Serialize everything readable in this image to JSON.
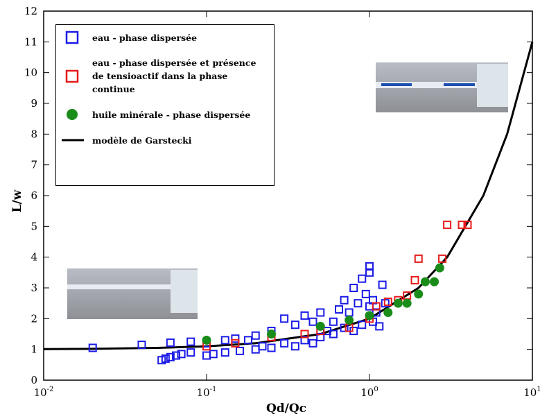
{
  "chart_data": {
    "type": "scatter",
    "x_label": "Qd/Qc",
    "y_label": "L/w",
    "xscale": "log",
    "xlim": [
      0.01,
      10
    ],
    "ylim": [
      0,
      12
    ],
    "xticks": [
      {
        "value": 0.01,
        "label": "10",
        "exponent": "-2"
      },
      {
        "value": 0.1,
        "label": "10",
        "exponent": "-1"
      },
      {
        "value": 1,
        "label": "10",
        "exponent": "0"
      },
      {
        "value": 10,
        "label": "10",
        "exponent": "1"
      }
    ],
    "yticks": [
      0,
      1,
      2,
      3,
      4,
      5,
      6,
      7,
      8,
      9,
      10,
      11,
      12
    ],
    "series": [
      {
        "name": "eau - phase dispersée",
        "color": "#1a1ae6",
        "marker": "square-open",
        "x": [
          0.02,
          0.04,
          0.053,
          0.056,
          0.06,
          0.06,
          0.065,
          0.07,
          0.08,
          0.08,
          0.1,
          0.1,
          0.11,
          0.13,
          0.13,
          0.15,
          0.16,
          0.18,
          0.2,
          0.2,
          0.22,
          0.25,
          0.25,
          0.3,
          0.3,
          0.35,
          0.35,
          0.4,
          0.4,
          0.45,
          0.45,
          0.5,
          0.5,
          0.55,
          0.6,
          0.6,
          0.65,
          0.7,
          0.7,
          0.75,
          0.8,
          0.8,
          0.85,
          0.9,
          0.9,
          0.95,
          1.0,
          1.0,
          1.0,
          1.05,
          1.05,
          1.1,
          1.15,
          1.2,
          1.25
        ],
        "y": [
          1.05,
          1.15,
          0.65,
          0.7,
          1.22,
          0.75,
          0.8,
          0.85,
          1.25,
          0.9,
          0.8,
          1.2,
          0.85,
          1.3,
          0.9,
          1.35,
          0.95,
          1.3,
          1.0,
          1.45,
          1.1,
          1.05,
          1.6,
          1.2,
          2.0,
          1.1,
          1.8,
          2.1,
          1.3,
          1.2,
          1.9,
          2.2,
          1.4,
          1.6,
          1.5,
          1.9,
          2.3,
          1.7,
          2.6,
          2.2,
          3.0,
          1.6,
          2.5,
          3.3,
          1.8,
          2.8,
          3.7,
          3.5,
          2.4,
          1.9,
          2.6,
          2.2,
          1.75,
          3.1,
          2.5
        ]
      },
      {
        "name": "eau - phase dispersée et présence de tensioactif dans la phase continue",
        "color": "#e61a1a",
        "marker": "square-open",
        "x": [
          0.1,
          0.15,
          0.25,
          0.4,
          0.5,
          0.75,
          1.0,
          1.1,
          1.3,
          1.5,
          1.7,
          1.9,
          2.0,
          2.8,
          3.0,
          3.7,
          4.0
        ],
        "y": [
          1.1,
          1.2,
          1.4,
          1.5,
          1.6,
          1.7,
          2.0,
          2.4,
          2.55,
          2.6,
          2.75,
          3.25,
          3.95,
          3.95,
          5.05,
          5.05,
          5.05
        ]
      },
      {
        "name": "huile minérale - phase dispersée",
        "color": "#1a8c1a",
        "marker": "circle",
        "x": [
          0.1,
          0.25,
          0.5,
          0.75,
          1.0,
          1.3,
          1.5,
          1.7,
          2.0,
          2.2,
          2.5,
          2.7
        ],
        "y": [
          1.3,
          1.5,
          1.75,
          1.95,
          2.1,
          2.2,
          2.5,
          2.5,
          2.8,
          3.2,
          3.2,
          3.65
        ]
      },
      {
        "name": "modèle de Garstecki",
        "color": "#000000",
        "marker": "line",
        "x": [
          0.01,
          0.02,
          0.05,
          0.1,
          0.2,
          0.5,
          1,
          2,
          3,
          5,
          7,
          10
        ],
        "y": [
          1.01,
          1.02,
          1.05,
          1.1,
          1.2,
          1.5,
          2,
          3,
          4,
          6,
          8,
          11
        ]
      }
    ]
  }
}
